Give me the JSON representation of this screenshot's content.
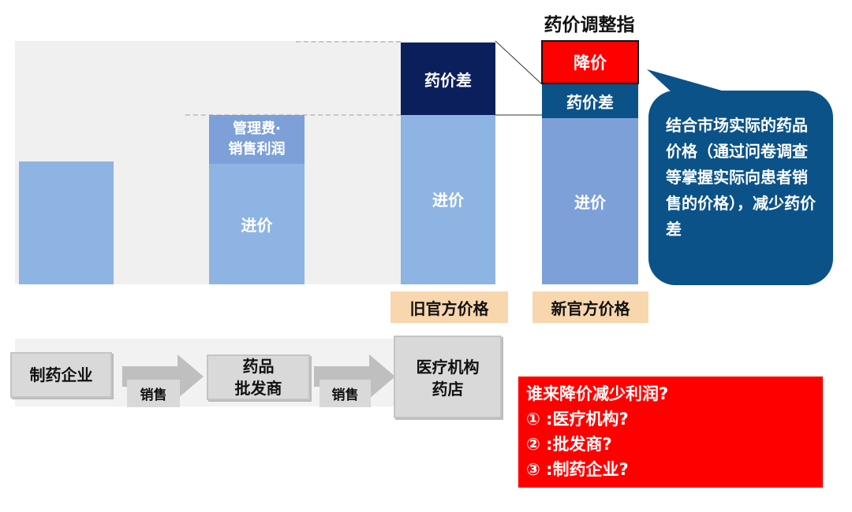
{
  "chart": {
    "bar2_top": "管理费·\n销售利润",
    "purchase_price": "进价",
    "drug_price_diff": "药价差",
    "old_price_label": "旧官方价格",
    "new_price_label": "新官方价格",
    "adjust_title": "药价调整指",
    "price_cut": "降价"
  },
  "callout": {
    "text": "结合市场实际的药品价格（通过问卷调查等掌握实际向患者销售的价格），减少药价差"
  },
  "flow": {
    "manufacturer": "制药企业",
    "sale1": "销售",
    "wholesaler": "药品\n批发商",
    "sale2": "销售",
    "hospital": "医疗机构\n药店"
  },
  "question": {
    "title": "谁来降价减少利润?",
    "items": [
      "① :医疗机构?",
      "② :批发商?",
      "③ :制药企业?"
    ]
  },
  "colors": {
    "light_blue": "#8eb4e3",
    "mid_blue": "#7da0d8",
    "navy": "#0a1f5c",
    "teal_navy": "#0b5288",
    "red": "#ff0000",
    "label_bg": "#f8d6ae"
  }
}
